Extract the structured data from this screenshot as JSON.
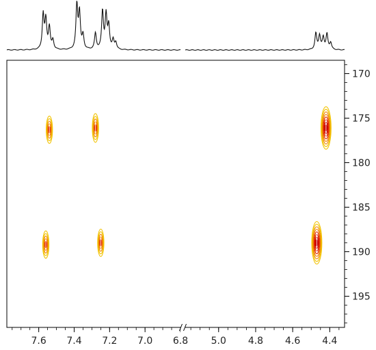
{
  "chart_data": {
    "type": "2D NMR contour plot (HMBC-style) with 1D projection",
    "title": "",
    "xlabel": "",
    "ylabel": "",
    "x_axis": {
      "reversed": true,
      "broken": true,
      "segments": [
        {
          "range": [
            7.78,
            6.8
          ],
          "ticks": [
            7.6,
            7.4,
            7.2,
            7.0,
            6.8
          ],
          "tick_labels": [
            "7.6",
            "7.4",
            "7.2",
            "7.0",
            "6.8"
          ]
        },
        {
          "range": [
            5.18,
            4.32
          ],
          "ticks": [
            5.0,
            4.8,
            4.6,
            4.4
          ],
          "tick_labels": [
            "5.0",
            "4.8",
            "4.6",
            "4.4"
          ]
        }
      ]
    },
    "y_axis": {
      "reversed": true,
      "range": [
        168.5,
        198.5
      ],
      "ticks": [
        170,
        175,
        180,
        185,
        190,
        195
      ],
      "tick_labels": [
        "170",
        "175",
        "180",
        "185",
        "190",
        "195"
      ],
      "minor_tick_step": 1
    },
    "cross_peaks": [
      {
        "x": 7.54,
        "y": 176.3,
        "intensity": 0.5
      },
      {
        "x": 7.28,
        "y": 176.1,
        "intensity": 0.7
      },
      {
        "x": 4.42,
        "y": 176.1,
        "intensity": 1.0
      },
      {
        "x": 7.56,
        "y": 189.2,
        "intensity": 0.5
      },
      {
        "x": 7.25,
        "y": 189.0,
        "intensity": 0.45
      },
      {
        "x": 4.47,
        "y": 189.0,
        "intensity": 1.0
      }
    ],
    "projection_1d": [
      {
        "x": 7.575,
        "height": 0.75
      },
      {
        "x": 7.56,
        "height": 0.62
      },
      {
        "x": 7.54,
        "height": 0.48
      },
      {
        "x": 7.52,
        "height": 0.2
      },
      {
        "x": 7.385,
        "height": 0.95
      },
      {
        "x": 7.37,
        "height": 0.78
      },
      {
        "x": 7.35,
        "height": 0.3
      },
      {
        "x": 7.28,
        "height": 0.35
      },
      {
        "x": 7.24,
        "height": 0.82
      },
      {
        "x": 7.22,
        "height": 0.72
      },
      {
        "x": 7.205,
        "height": 0.5
      },
      {
        "x": 7.18,
        "height": 0.2
      },
      {
        "x": 7.165,
        "height": 0.15
      },
      {
        "x": 4.475,
        "height": 0.35
      },
      {
        "x": 4.455,
        "height": 0.3
      },
      {
        "x": 4.435,
        "height": 0.26
      },
      {
        "x": 4.415,
        "height": 0.33
      },
      {
        "x": 4.395,
        "height": 0.15
      }
    ],
    "colors": {
      "weak": "#f2c200",
      "mid": "#f08000",
      "strong": "#e02000",
      "core": "#c80000"
    }
  }
}
